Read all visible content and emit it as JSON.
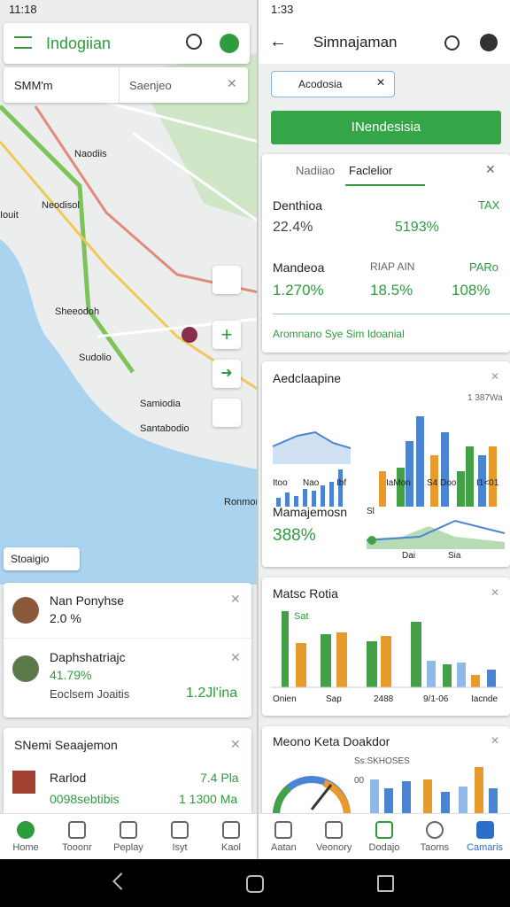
{
  "left": {
    "status_time": "11:18",
    "app_title": "Indogiian",
    "search_field": "SMM'm",
    "search_placeholder": "Saenjeo",
    "map_labels": [
      "Naodiis",
      "Neodisol",
      "Iouit",
      "Sheeodoh",
      "Sudolio",
      "Samiodia",
      "Santabodio",
      "Ronmon"
    ],
    "map_chip": "Stoaigio",
    "card1": {
      "item1": {
        "title": "Nan Ponyhse",
        "value": "2.0 %"
      },
      "item2": {
        "title": "Daphshatriajc",
        "value": "41.79%",
        "sub": "Eoclsem Joaitis",
        "amount": "1.2Jl'ina"
      }
    },
    "card2": {
      "title": "SNemi Seaajemon",
      "rows": [
        {
          "label": "Rarlod",
          "value": "7.4 Pla"
        },
        {
          "label": "0098sebtibis",
          "value": "1 1300 Ma"
        }
      ]
    },
    "nav": [
      "Home",
      "Tooonr",
      "Peplay",
      "Isyt",
      "Kaol"
    ]
  },
  "right": {
    "status_time": "1:33",
    "title": "Simnajaman",
    "search_chip": "Acodosia",
    "button": "INendesisia",
    "tabs": [
      "Nadiiao",
      "Faclelior"
    ],
    "stats": {
      "r1": {
        "label": "Denthioa",
        "value": "22.4%",
        "label2": "TAX",
        "value2": "5193%"
      },
      "r2": [
        {
          "label": "Mandeoa",
          "value": "1.270%"
        },
        {
          "label": "RIAP AIN",
          "value": "18.5%"
        },
        {
          "label": "PARo",
          "value": "108%"
        }
      ],
      "link": "Aromnano Sye Sim Idoanial"
    },
    "card2": {
      "title": "Aedclaapine",
      "corner": "1 387Wa",
      "axis1": [
        "Itoo",
        "Nao",
        "Ibf"
      ],
      "axis2": [
        "IaMon",
        "S4 Doo",
        "I1<01"
      ],
      "sub_title": "Mamajemosn",
      "sub_value": "388%",
      "sub_tag": "Sl",
      "axis3": [
        "Dai",
        "Sia"
      ]
    },
    "card3": {
      "title": "Matsc Rotia",
      "tag": "Sat",
      "axis": [
        "Onien",
        "Sap",
        "2488",
        "9/1-06",
        "Iacnde"
      ]
    },
    "card4": {
      "title": "Meono Keta Doakdor",
      "sub": "Ss:SKHOSES",
      "tick": "00"
    },
    "nav": [
      "Aatan",
      "Veonory",
      "Dodajo",
      "Taoms",
      "Camaris"
    ]
  }
}
